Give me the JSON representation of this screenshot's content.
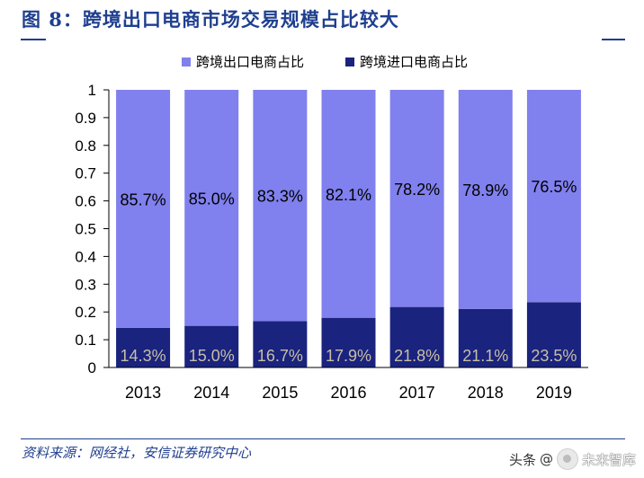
{
  "figure": {
    "title": "图 8：跨境出口电商市场交易规模占比较大",
    "source": "资料来源：网经社，安信证券研究中心"
  },
  "watermark": {
    "prefix": "头条",
    "at": "@",
    "brand": "未来智库"
  },
  "chart_data": {
    "type": "bar",
    "stacked": true,
    "categories": [
      "2013",
      "2014",
      "2015",
      "2016",
      "2017",
      "2018",
      "2019"
    ],
    "series": [
      {
        "name": "跨境进口电商占比",
        "color": "#1a237e",
        "label_color": "#c8bfa5",
        "values": [
          0.143,
          0.15,
          0.167,
          0.179,
          0.218,
          0.211,
          0.235
        ],
        "labels": [
          "14.3%",
          "15.0%",
          "16.7%",
          "17.9%",
          "21.8%",
          "21.1%",
          "23.5%"
        ]
      },
      {
        "name": "跨境出口电商占比",
        "color": "#8080ee",
        "label_color": "#000000",
        "values": [
          0.857,
          0.85,
          0.833,
          0.821,
          0.782,
          0.789,
          0.765
        ],
        "labels": [
          "85.7%",
          "85.0%",
          "83.3%",
          "82.1%",
          "78.2%",
          "78.9%",
          "76.5%"
        ]
      }
    ],
    "legend": [
      {
        "name": "跨境出口电商占比",
        "color": "#8080ee"
      },
      {
        "name": "跨境进口电商占比",
        "color": "#1a237e"
      }
    ],
    "legend_position": "top-center",
    "ylim": [
      0,
      1
    ],
    "yticks": [
      "0",
      "0.1",
      "0.2",
      "0.3",
      "0.4",
      "0.5",
      "0.6",
      "0.7",
      "0.8",
      "0.9",
      "1"
    ],
    "ytick_values": [
      0,
      0.1,
      0.2,
      0.3,
      0.4,
      0.5,
      0.6,
      0.7,
      0.8,
      0.9,
      1
    ],
    "grid": false,
    "xlabel": "",
    "ylabel": ""
  }
}
